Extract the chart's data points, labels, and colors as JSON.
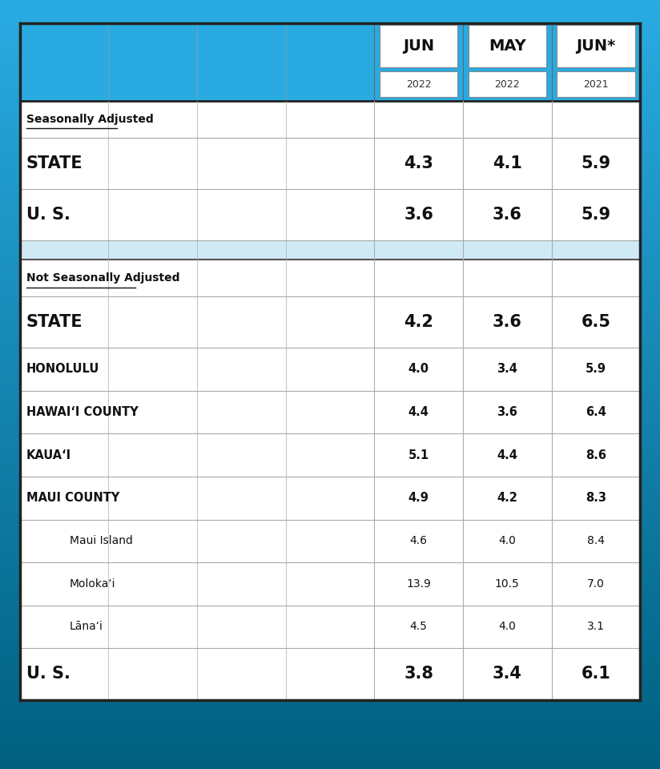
{
  "header_bg": "#29ABE2",
  "table_bg": "#FFFFFF",
  "bg_top": "#29ABE2",
  "bg_bottom": "#005F7F",
  "header_labels": [
    [
      "JUN",
      "2022"
    ],
    [
      "MAY",
      "2022"
    ],
    [
      "JUN*",
      "2021"
    ]
  ],
  "sections": [
    {
      "type": "section_header",
      "label": "Seasonally Adjusted"
    },
    {
      "type": "data_row",
      "label": "STATE",
      "label_bold": true,
      "label_size": "large",
      "indent": 0,
      "col1": "4.3",
      "col2": "4.1",
      "col3": "5.9"
    },
    {
      "type": "data_row",
      "label": "U. S.",
      "label_bold": true,
      "label_size": "large",
      "indent": 0,
      "col1": "3.6",
      "col2": "3.6",
      "col3": "5.9"
    },
    {
      "type": "spacer"
    },
    {
      "type": "section_header",
      "label": "Not Seasonally Adjusted"
    },
    {
      "type": "data_row",
      "label": "STATE",
      "label_bold": true,
      "label_size": "large",
      "indent": 0,
      "col1": "4.2",
      "col2": "3.6",
      "col3": "6.5"
    },
    {
      "type": "data_row",
      "label": "HONOLULU",
      "label_bold": true,
      "label_size": "medium",
      "indent": 0,
      "col1": "4.0",
      "col2": "3.4",
      "col3": "5.9"
    },
    {
      "type": "data_row",
      "label": "HAWAIʻI COUNTY",
      "label_bold": true,
      "label_size": "medium",
      "indent": 0,
      "col1": "4.4",
      "col2": "3.6",
      "col3": "6.4"
    },
    {
      "type": "data_row",
      "label": "KAUAʻI",
      "label_bold": true,
      "label_size": "medium",
      "indent": 0,
      "col1": "5.1",
      "col2": "4.4",
      "col3": "8.6"
    },
    {
      "type": "data_row",
      "label": "MAUI COUNTY",
      "label_bold": true,
      "label_size": "medium",
      "indent": 0,
      "col1": "4.9",
      "col2": "4.2",
      "col3": "8.3"
    },
    {
      "type": "data_row",
      "label": "Maui Island",
      "label_bold": false,
      "label_size": "small",
      "indent": 1,
      "col1": "4.6",
      "col2": "4.0",
      "col3": "8.4"
    },
    {
      "type": "data_row",
      "label": "Molokaʻi",
      "label_bold": false,
      "label_size": "small",
      "indent": 1,
      "col1": "13.9",
      "col2": "10.5",
      "col3": "7.0"
    },
    {
      "type": "data_row",
      "label": "Lānaʻi",
      "label_bold": false,
      "label_size": "small",
      "indent": 1,
      "col1": "4.5",
      "col2": "4.0",
      "col3": "3.1"
    },
    {
      "type": "data_row",
      "label": "U. S.",
      "label_bold": true,
      "label_size": "large",
      "indent": 0,
      "col1": "3.8",
      "col2": "3.4",
      "col3": "6.1"
    }
  ]
}
